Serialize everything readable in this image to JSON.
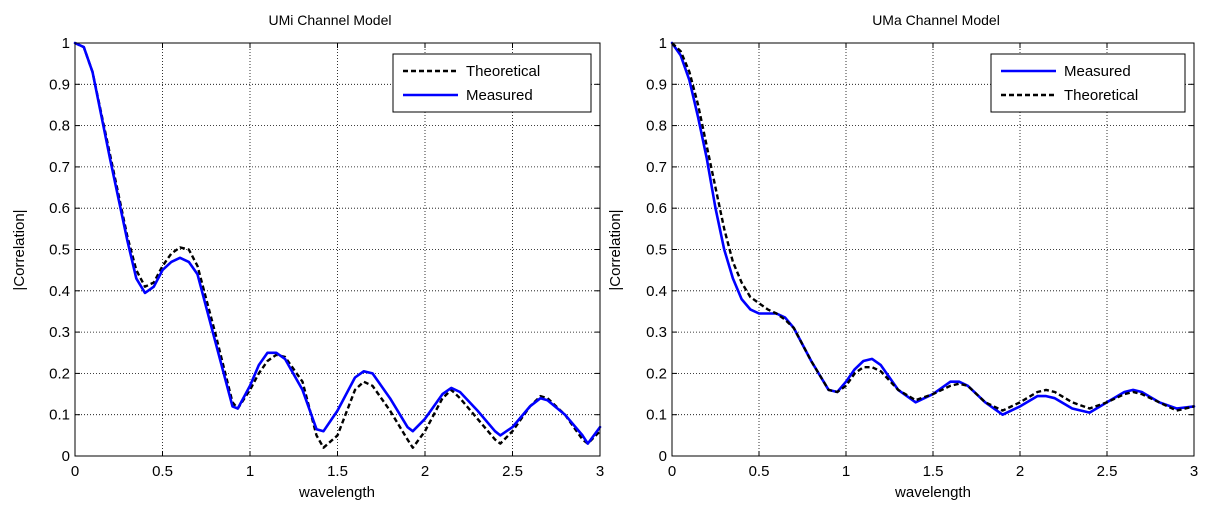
{
  "chart_data": [
    {
      "type": "line",
      "title": "UMi Channel Model",
      "xlabel": "wavelength",
      "ylabel": "|Correlation|",
      "xlim": [
        0,
        3
      ],
      "ylim": [
        0,
        1
      ],
      "xticks": [
        0,
        0.5,
        1,
        1.5,
        2,
        2.5,
        3
      ],
      "xtick_labels": [
        "0",
        "0.5",
        "1",
        "1.5",
        "2",
        "2.5",
        "3"
      ],
      "yticks": [
        0,
        0.1,
        0.2,
        0.3,
        0.4,
        0.5,
        0.6,
        0.7,
        0.8,
        0.9,
        1
      ],
      "ytick_labels": [
        "0",
        "0.1",
        "0.2",
        "0.3",
        "0.4",
        "0.5",
        "0.6",
        "0.7",
        "0.8",
        "0.9",
        "1"
      ],
      "grid": true,
      "legend_position": "top-right",
      "series": [
        {
          "name": "Theoretical",
          "color": "#000000",
          "style": "dashed",
          "x": [
            0,
            0.05,
            0.1,
            0.2,
            0.3,
            0.35,
            0.4,
            0.45,
            0.5,
            0.55,
            0.6,
            0.65,
            0.7,
            0.8,
            0.9,
            0.93,
            1.0,
            1.05,
            1.1,
            1.15,
            1.2,
            1.3,
            1.38,
            1.42,
            1.5,
            1.6,
            1.65,
            1.7,
            1.8,
            1.9,
            1.93,
            2.0,
            2.1,
            2.15,
            2.2,
            2.3,
            2.4,
            2.43,
            2.5,
            2.6,
            2.66,
            2.7,
            2.8,
            2.9,
            2.93,
            3.0
          ],
          "y": [
            1.0,
            0.99,
            0.93,
            0.73,
            0.53,
            0.45,
            0.41,
            0.42,
            0.46,
            0.49,
            0.505,
            0.5,
            0.46,
            0.3,
            0.13,
            0.115,
            0.16,
            0.2,
            0.23,
            0.245,
            0.24,
            0.18,
            0.05,
            0.02,
            0.05,
            0.16,
            0.18,
            0.17,
            0.11,
            0.04,
            0.02,
            0.06,
            0.14,
            0.16,
            0.14,
            0.09,
            0.04,
            0.03,
            0.06,
            0.12,
            0.145,
            0.14,
            0.1,
            0.04,
            0.03,
            0.06
          ]
        },
        {
          "name": "Measured",
          "color": "#0000ff",
          "style": "solid",
          "x": [
            0,
            0.05,
            0.1,
            0.2,
            0.3,
            0.35,
            0.4,
            0.45,
            0.5,
            0.55,
            0.6,
            0.65,
            0.7,
            0.8,
            0.9,
            0.93,
            1.0,
            1.05,
            1.1,
            1.15,
            1.2,
            1.3,
            1.38,
            1.42,
            1.5,
            1.6,
            1.65,
            1.7,
            1.8,
            1.9,
            1.93,
            2.0,
            2.1,
            2.15,
            2.2,
            2.3,
            2.4,
            2.43,
            2.5,
            2.6,
            2.66,
            2.7,
            2.8,
            2.9,
            2.93,
            3.0
          ],
          "y": [
            1.0,
            0.99,
            0.93,
            0.72,
            0.52,
            0.43,
            0.395,
            0.41,
            0.45,
            0.47,
            0.48,
            0.47,
            0.44,
            0.28,
            0.12,
            0.115,
            0.17,
            0.22,
            0.25,
            0.25,
            0.235,
            0.16,
            0.065,
            0.06,
            0.11,
            0.19,
            0.205,
            0.2,
            0.14,
            0.07,
            0.06,
            0.09,
            0.15,
            0.165,
            0.155,
            0.11,
            0.06,
            0.05,
            0.07,
            0.12,
            0.14,
            0.135,
            0.1,
            0.05,
            0.03,
            0.07
          ]
        }
      ]
    },
    {
      "type": "line",
      "title": "UMa Channel Model",
      "xlabel": "wavelength",
      "ylabel": "|Correlation|",
      "xlim": [
        0,
        3
      ],
      "ylim": [
        0,
        1
      ],
      "xticks": [
        0,
        0.5,
        1,
        1.5,
        2,
        2.5,
        3
      ],
      "xtick_labels": [
        "0",
        "0.5",
        "1",
        "1.5",
        "2",
        "2.5",
        "3"
      ],
      "yticks": [
        0,
        0.1,
        0.2,
        0.3,
        0.4,
        0.5,
        0.6,
        0.7,
        0.8,
        0.9,
        1
      ],
      "ytick_labels": [
        "0",
        "0.1",
        "0.2",
        "0.3",
        "0.4",
        "0.5",
        "0.6",
        "0.7",
        "0.8",
        "0.9",
        "1"
      ],
      "grid": true,
      "legend_position": "top-right",
      "series": [
        {
          "name": "Measured",
          "color": "#0000ff",
          "style": "solid",
          "x": [
            0,
            0.05,
            0.1,
            0.15,
            0.2,
            0.25,
            0.3,
            0.35,
            0.4,
            0.45,
            0.5,
            0.55,
            0.6,
            0.65,
            0.7,
            0.8,
            0.9,
            0.95,
            1.0,
            1.05,
            1.1,
            1.15,
            1.2,
            1.3,
            1.4,
            1.5,
            1.6,
            1.65,
            1.7,
            1.8,
            1.9,
            2.0,
            2.1,
            2.15,
            2.2,
            2.3,
            2.4,
            2.5,
            2.6,
            2.65,
            2.7,
            2.8,
            2.9,
            3.0
          ],
          "y": [
            1.0,
            0.97,
            0.91,
            0.82,
            0.72,
            0.6,
            0.5,
            0.43,
            0.38,
            0.355,
            0.345,
            0.345,
            0.345,
            0.335,
            0.31,
            0.23,
            0.16,
            0.155,
            0.18,
            0.21,
            0.23,
            0.235,
            0.22,
            0.16,
            0.13,
            0.15,
            0.18,
            0.18,
            0.17,
            0.13,
            0.1,
            0.12,
            0.145,
            0.145,
            0.14,
            0.115,
            0.105,
            0.13,
            0.155,
            0.16,
            0.155,
            0.13,
            0.115,
            0.12
          ]
        },
        {
          "name": "Theoretical",
          "color": "#000000",
          "style": "dashed",
          "x": [
            0,
            0.05,
            0.1,
            0.15,
            0.2,
            0.25,
            0.3,
            0.35,
            0.4,
            0.45,
            0.5,
            0.55,
            0.6,
            0.65,
            0.7,
            0.8,
            0.9,
            0.95,
            1.0,
            1.05,
            1.1,
            1.15,
            1.2,
            1.3,
            1.4,
            1.5,
            1.6,
            1.65,
            1.7,
            1.8,
            1.9,
            2.0,
            2.1,
            2.15,
            2.2,
            2.3,
            2.4,
            2.5,
            2.6,
            2.65,
            2.7,
            2.8,
            2.9,
            3.0
          ],
          "y": [
            1.0,
            0.98,
            0.93,
            0.85,
            0.75,
            0.65,
            0.55,
            0.47,
            0.42,
            0.385,
            0.37,
            0.355,
            0.345,
            0.33,
            0.31,
            0.23,
            0.16,
            0.155,
            0.17,
            0.2,
            0.215,
            0.215,
            0.205,
            0.16,
            0.135,
            0.15,
            0.17,
            0.175,
            0.17,
            0.13,
            0.11,
            0.13,
            0.155,
            0.16,
            0.155,
            0.13,
            0.115,
            0.13,
            0.15,
            0.155,
            0.15,
            0.13,
            0.11,
            0.12
          ]
        }
      ]
    }
  ]
}
